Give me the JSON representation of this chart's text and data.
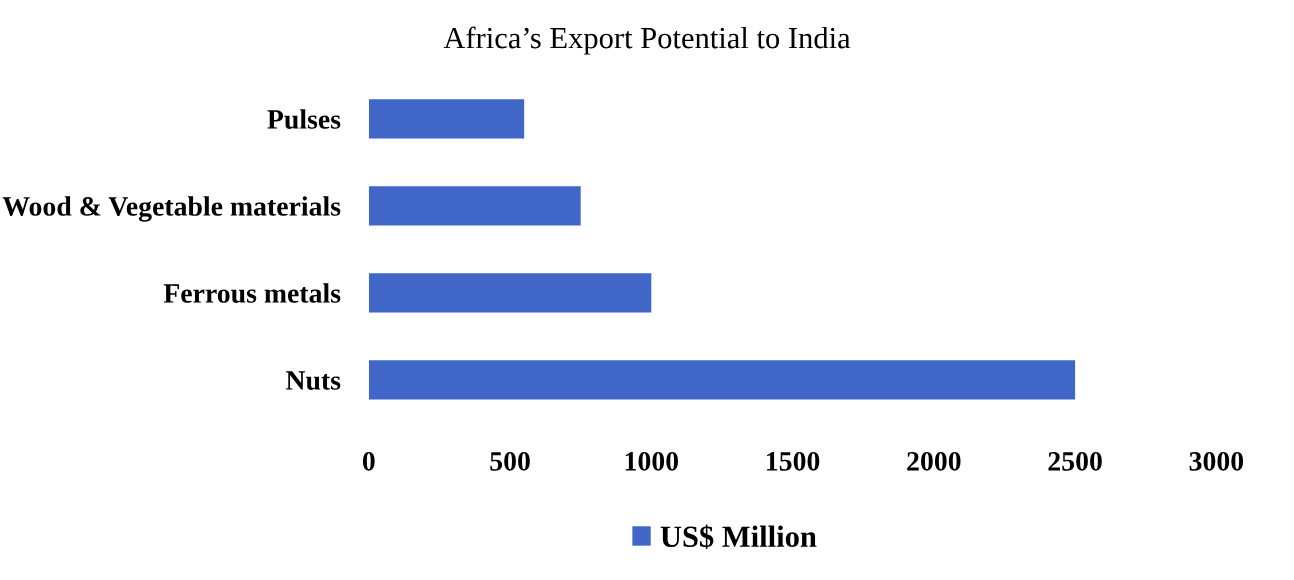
{
  "chart_data": {
    "type": "bar",
    "orientation": "horizontal",
    "title": "Africa’s Export Potential to India",
    "categories": [
      "Pulses",
      "Wood & Vegetable materials",
      "Ferrous metals",
      "Nuts"
    ],
    "series": [
      {
        "name": "US$ Million",
        "color": "#4066c8",
        "values": [
          550,
          750,
          1000,
          2500
        ]
      }
    ],
    "xlim": [
      0,
      3000
    ],
    "xticks": [
      0,
      500,
      1000,
      1500,
      2000,
      2500,
      3000
    ],
    "grid": false,
    "legend": "bottom"
  }
}
